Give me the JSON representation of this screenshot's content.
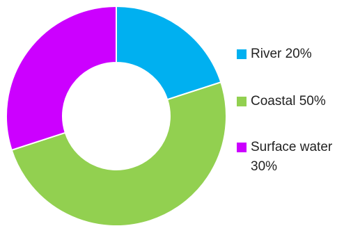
{
  "chart_data": {
    "type": "pie",
    "donut": true,
    "legend_position": "right",
    "slices": [
      {
        "label": "River 20%",
        "value": 20,
        "color": "#00B0F0"
      },
      {
        "label": "Coastal 50%",
        "value": 50,
        "color": "#92D050"
      },
      {
        "label": "Surface water 30%",
        "value": 30,
        "color": "#CC00FF"
      }
    ]
  }
}
